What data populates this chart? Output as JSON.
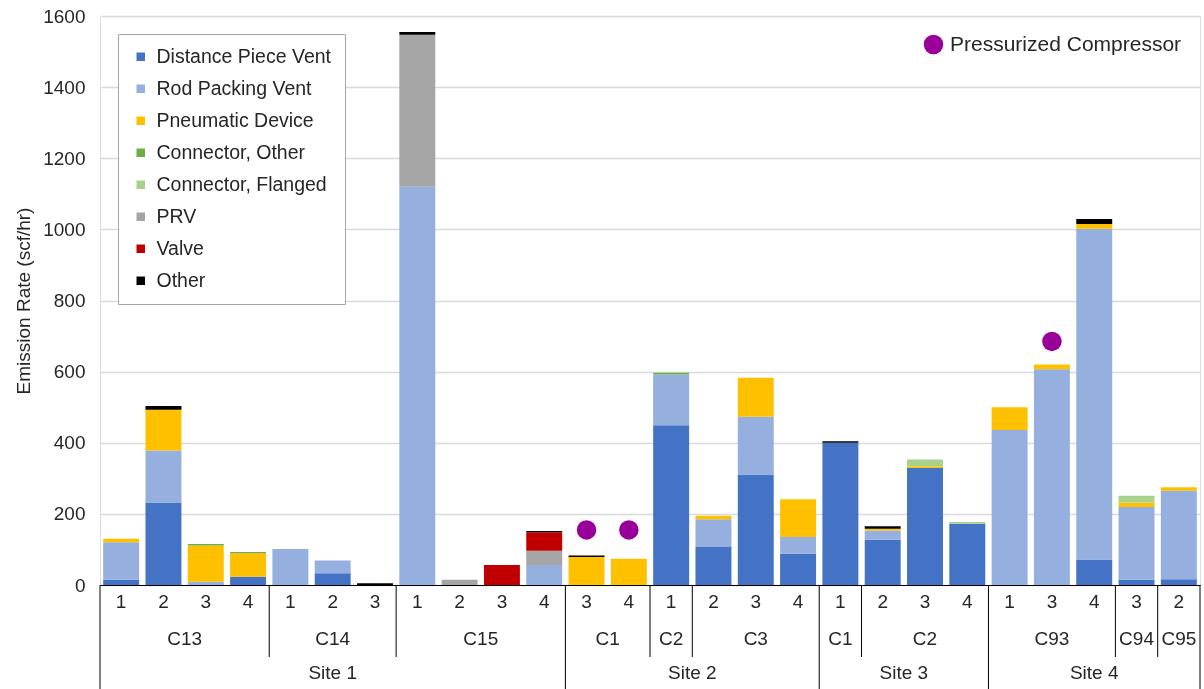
{
  "chart_data": {
    "type": "bar",
    "stacked": true,
    "ylabel": "Emission Rate (scf/hr)",
    "categories": [
      "1",
      "2",
      "3",
      "4",
      "1",
      "2",
      "3",
      "1",
      "2",
      "3",
      "4",
      "3",
      "4",
      "1",
      "2",
      "3",
      "4",
      "1",
      "2",
      "3",
      "4",
      "1",
      "3",
      "4",
      "3",
      "2"
    ],
    "annotations": [
      "C13",
      "C14",
      "C15",
      "C1",
      "C2",
      "C3",
      "C1",
      "C2",
      "C93",
      "C94",
      "C95",
      "Site 1",
      "Site 2",
      "Site 3",
      "Site 4"
    ],
    "ylim": [
      0,
      1600
    ],
    "yticks": [
      0,
      200,
      400,
      600,
      800,
      1000,
      1200,
      1400,
      1600
    ],
    "grid": "y",
    "legend": "top left",
    "series": [
      {
        "name": "Distance Piece Vent",
        "color": "#4472c4",
        "values": [
          15,
          232,
          null,
          23,
          null,
          33,
          null,
          null,
          null,
          null,
          null,
          null,
          null,
          449,
          107,
          311,
          88,
          400,
          127,
          329,
          172,
          null,
          null,
          72,
          15,
          16
        ]
      },
      {
        "name": "Rod Packing Vent",
        "color": "#95b0de",
        "values": [
          105,
          146,
          9,
          null,
          101,
          36,
          null,
          1120,
          null,
          null,
          56,
          null,
          null,
          143,
          78,
          162,
          47,
          null,
          26,
          null,
          null,
          436,
          607,
          930,
          204,
          249
        ]
      },
      {
        "name": "Pneumatic Device",
        "color": "#ffc000",
        "values": [
          10,
          115,
          102,
          66,
          null,
          null,
          null,
          null,
          null,
          null,
          null,
          79,
          74,
          null,
          10,
          110,
          106,
          null,
          5,
          5,
          null,
          64,
          13,
          13,
          13,
          10
        ]
      },
      {
        "name": "Connector, Other",
        "color": "#70ad47",
        "values": [
          null,
          null,
          4,
          4,
          null,
          null,
          null,
          null,
          null,
          null,
          null,
          null,
          null,
          5,
          null,
          null,
          null,
          null,
          null,
          null,
          null,
          null,
          null,
          null,
          null,
          null
        ]
      },
      {
        "name": "Connector, Flanged",
        "color": "#a9d18e",
        "values": [
          null,
          null,
          null,
          null,
          null,
          null,
          null,
          null,
          null,
          null,
          null,
          null,
          null,
          null,
          null,
          null,
          null,
          null,
          null,
          19,
          5,
          null,
          null,
          null,
          19,
          null
        ]
      },
      {
        "name": "PRV",
        "color": "#a5a5a5",
        "values": [
          null,
          null,
          null,
          null,
          null,
          null,
          null,
          427,
          15,
          null,
          40,
          null,
          null,
          null,
          null,
          null,
          null,
          null,
          null,
          null,
          null,
          null,
          null,
          null,
          null,
          null
        ]
      },
      {
        "name": "Valve",
        "color": "#c00000",
        "values": [
          null,
          null,
          null,
          null,
          null,
          null,
          null,
          null,
          null,
          56,
          52,
          null,
          null,
          null,
          null,
          null,
          null,
          null,
          null,
          null,
          null,
          null,
          null,
          null,
          null,
          null
        ]
      },
      {
        "name": "Other",
        "color": "#000000",
        "values": [
          null,
          10,
          null,
          null,
          null,
          null,
          5,
          8,
          null,
          null,
          4,
          4,
          null,
          null,
          null,
          null,
          null,
          4,
          7,
          null,
          null,
          null,
          null,
          14,
          null,
          null
        ]
      },
      {
        "name": "Pressurized Compressor",
        "type": "scatter",
        "marker": "circle",
        "color": "#990099",
        "values": [
          null,
          null,
          null,
          null,
          null,
          null,
          null,
          null,
          null,
          null,
          null,
          155,
          155,
          null,
          null,
          null,
          null,
          null,
          null,
          null,
          null,
          null,
          685,
          null,
          null,
          null
        ]
      }
    ]
  }
}
